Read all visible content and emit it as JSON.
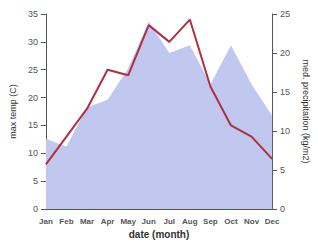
{
  "chart_data": {
    "type": "line",
    "categories": [
      "Jan",
      "Feb",
      "Mar",
      "Apr",
      "May",
      "Jun",
      "Jul",
      "Aug",
      "Sep",
      "Oct",
      "Nov",
      "Dec"
    ],
    "series": [
      {
        "type": "area",
        "color": "#c0c8f0",
        "axis": "y2",
        "values": [
          9,
          8,
          13,
          14,
          18,
          24,
          20,
          21,
          16,
          21,
          16,
          12
        ]
      },
      {
        "type": "line",
        "color": "#b03040",
        "values": [
          8,
          13,
          18,
          25,
          24,
          33,
          30,
          34,
          22,
          15,
          13,
          9
        ]
      }
    ],
    "xlabel": "date (month)",
    "ylabel": "max temp (C)",
    "y2label": "med. precipitation (kg/m2)",
    "ylim": [
      0,
      35
    ],
    "yticks": [
      0,
      5,
      10,
      15,
      20,
      25,
      30,
      35
    ],
    "y2lim": [
      0,
      25
    ],
    "y2ticks": [
      0,
      5,
      10,
      15,
      20,
      25
    ],
    "grid": false
  }
}
